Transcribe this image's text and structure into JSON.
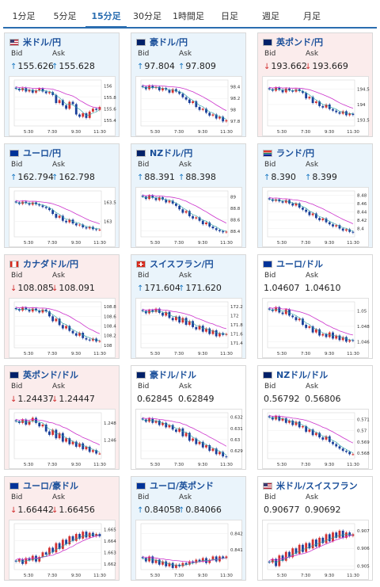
{
  "tabs": [
    {
      "label": "1分足",
      "active": false
    },
    {
      "label": "5分足",
      "active": false
    },
    {
      "label": "15分足",
      "active": true
    },
    {
      "label": "30分足",
      "active": false
    },
    {
      "label": "1時間足",
      "active": false
    },
    {
      "label": "日足",
      "active": false
    },
    {
      "label": "週足",
      "active": false
    },
    {
      "label": "月足",
      "active": false
    }
  ],
  "colors": {
    "up_arrow": "#1a78c2",
    "down_arrow": "#d23030",
    "tab_active": "#2a6db0",
    "card_up_bg": "#eaf4fb",
    "card_down_bg": "#fbecec",
    "ma_line": "#cc33cc",
    "ma_short": "#2aa3a3",
    "candle_up": "#d23030",
    "candle_down": "#1a3f9a"
  },
  "labels": {
    "bid": "Bid",
    "ask": "Ask"
  },
  "x_ticks": [
    "5:30",
    "7:30",
    "9:30",
    "11:30"
  ],
  "cards": [
    {
      "pair": "米ドル/円",
      "flag": "us-flag",
      "trend": "up",
      "bid": "155.626",
      "ask": "155.628",
      "bid_dir": "up",
      "ask_dir": "up",
      "y_ticks": [
        "156",
        "155.8",
        "155.6",
        "155.4"
      ],
      "ylim": [
        155.3,
        156.1
      ],
      "closes": [
        155.95,
        155.92,
        155.96,
        155.9,
        155.93,
        155.88,
        155.92,
        155.95,
        155.9,
        155.87,
        155.89,
        155.84,
        155.7,
        155.75,
        155.66,
        155.6,
        155.72,
        155.68,
        155.5,
        155.46,
        155.52,
        155.44,
        155.55,
        155.6,
        155.58,
        155.63
      ]
    },
    {
      "pair": "豪ドル/円",
      "flag": "au-flag",
      "trend": "up",
      "bid": "97.804",
      "ask": "97.809",
      "bid_dir": "up",
      "ask_dir": "up",
      "y_ticks": [
        "98.4",
        "98.2",
        "98",
        "97.8"
      ],
      "ylim": [
        97.72,
        98.52
      ],
      "closes": [
        98.4,
        98.36,
        98.42,
        98.38,
        98.4,
        98.34,
        98.38,
        98.35,
        98.3,
        98.36,
        98.32,
        98.28,
        98.22,
        98.18,
        98.12,
        98.15,
        98.05,
        98.0,
        98.02,
        97.95,
        97.9,
        97.92,
        97.85,
        97.88,
        97.8,
        97.82
      ]
    },
    {
      "pair": "英ポンド/円",
      "flag": "gb-flag",
      "trend": "down",
      "bid": "193.662",
      "ask": "193.669",
      "bid_dir": "down",
      "ask_dir": "down",
      "y_ticks": [
        "194.5",
        "194",
        "193.5"
      ],
      "ylim": [
        193.3,
        194.8
      ],
      "closes": [
        194.5,
        194.45,
        194.55,
        194.48,
        194.4,
        194.52,
        194.46,
        194.42,
        194.5,
        194.44,
        194.38,
        194.2,
        194.25,
        194.05,
        194.1,
        193.95,
        193.9,
        194.0,
        193.85,
        193.8,
        193.75,
        193.7,
        193.78,
        193.65,
        193.7,
        193.66
      ]
    },
    {
      "pair": "ユーロ/円",
      "flag": "eu-flag",
      "trend": "up",
      "bid": "162.794",
      "ask": "162.798",
      "bid_dir": "up",
      "ask_dir": "up",
      "y_ticks": [
        "163.5",
        "163"
      ],
      "ylim": [
        162.6,
        163.8
      ],
      "closes": [
        163.5,
        163.46,
        163.52,
        163.48,
        163.44,
        163.5,
        163.45,
        163.42,
        163.38,
        163.35,
        163.3,
        163.2,
        163.1,
        163.15,
        163.02,
        162.98,
        163.05,
        162.95,
        162.9,
        162.92,
        162.85,
        162.82,
        162.86,
        162.8,
        162.78,
        162.79
      ]
    },
    {
      "pair": "NZドル/円",
      "flag": "nz-flag",
      "trend": "up",
      "bid": "88.391",
      "ask": "88.398",
      "bid_dir": "up",
      "ask_dir": "up",
      "y_ticks": [
        "89",
        "88.8",
        "88.6",
        "88.4"
      ],
      "ylim": [
        88.3,
        89.1
      ],
      "closes": [
        89.0,
        88.96,
        89.02,
        88.98,
        88.94,
        88.99,
        88.95,
        88.9,
        88.93,
        88.88,
        88.84,
        88.78,
        88.72,
        88.75,
        88.66,
        88.62,
        88.64,
        88.58,
        88.52,
        88.55,
        88.48,
        88.45,
        88.42,
        88.4,
        88.38,
        88.39
      ]
    },
    {
      "pair": "ランド/円",
      "flag": "za-flag",
      "trend": "up",
      "bid": "8.390",
      "ask": "8.399",
      "bid_dir": "up",
      "ask_dir": "up",
      "y_ticks": [
        "8.48",
        "8.46",
        "8.44",
        "8.42",
        "8.4"
      ],
      "ylim": [
        8.38,
        8.49
      ],
      "closes": [
        8.47,
        8.466,
        8.47,
        8.465,
        8.462,
        8.468,
        8.46,
        8.455,
        8.46,
        8.45,
        8.445,
        8.44,
        8.432,
        8.436,
        8.425,
        8.42,
        8.424,
        8.415,
        8.41,
        8.405,
        8.408,
        8.4,
        8.395,
        8.398,
        8.392,
        8.39
      ]
    },
    {
      "pair": "カナダドル/円",
      "flag": "ca-flag",
      "trend": "down",
      "bid": "108.085",
      "ask": "108.091",
      "bid_dir": "down",
      "ask_dir": "down",
      "y_ticks": [
        "108.8",
        "108.6",
        "108.4",
        "108.2",
        "108"
      ],
      "ylim": [
        107.95,
        108.9
      ],
      "closes": [
        108.75,
        108.72,
        108.78,
        108.74,
        108.7,
        108.76,
        108.72,
        108.68,
        108.74,
        108.7,
        108.6,
        108.5,
        108.55,
        108.42,
        108.35,
        108.4,
        108.3,
        108.25,
        108.2,
        108.26,
        108.15,
        108.12,
        108.1,
        108.14,
        108.08,
        108.09
      ]
    },
    {
      "pair": "スイスフラン/円",
      "flag": "ch-flag",
      "trend": "up",
      "bid": "171.604",
      "ask": "171.620",
      "bid_dir": "up",
      "ask_dir": "up",
      "y_ticks": [
        "172.2",
        "172",
        "171.8",
        "171.6",
        "171.4"
      ],
      "ylim": [
        171.3,
        172.3
      ],
      "closes": [
        172.1,
        172.05,
        172.12,
        172.08,
        172.15,
        172.06,
        172.0,
        172.08,
        171.95,
        171.9,
        171.98,
        171.85,
        171.95,
        171.8,
        171.88,
        171.75,
        171.7,
        171.78,
        171.65,
        171.72,
        171.6,
        171.68,
        171.55,
        171.62,
        171.58,
        171.6
      ]
    },
    {
      "pair": "ユーロ/ドル",
      "flag": "eu-us-flag",
      "trend": "flat",
      "bid": "1.04607",
      "ask": "1.04610",
      "bid_dir": "none",
      "ask_dir": "none",
      "y_ticks": [
        "1.05",
        "1.048",
        "1.046"
      ],
      "ylim": [
        1.0452,
        1.0512
      ],
      "closes": [
        1.0502,
        1.05,
        1.0505,
        1.0498,
        1.0496,
        1.0502,
        1.0494,
        1.0492,
        1.0488,
        1.049,
        1.0482,
        1.0478,
        1.048,
        1.0472,
        1.0476,
        1.0468,
        1.047,
        1.0466,
        1.0472,
        1.0464,
        1.0468,
        1.0462,
        1.0466,
        1.046,
        1.0462,
        1.0461
      ]
    },
    {
      "pair": "英ポンド/ドル",
      "flag": "gb-us-flag",
      "trend": "down",
      "bid": "1.24437",
      "ask": "1.24447",
      "bid_dir": "down",
      "ask_dir": "down",
      "y_ticks": [
        "1.248",
        "1.246"
      ],
      "ylim": [
        1.2438,
        1.2492
      ],
      "closes": [
        1.2482,
        1.248,
        1.2484,
        1.2478,
        1.2482,
        1.2486,
        1.248,
        1.2476,
        1.2478,
        1.247,
        1.2466,
        1.2472,
        1.2462,
        1.2468,
        1.2458,
        1.2462,
        1.2455,
        1.2458,
        1.2452,
        1.2456,
        1.2449,
        1.2452,
        1.2446,
        1.2448,
        1.2444,
        1.2444
      ]
    },
    {
      "pair": "豪ドル/ドル",
      "flag": "au-us-flag",
      "trend": "flat",
      "bid": "0.62845",
      "ask": "0.62849",
      "bid_dir": "none",
      "ask_dir": "none",
      "y_ticks": [
        "0.632",
        "0.631",
        "0.63",
        "0.629"
      ],
      "ylim": [
        0.6283,
        0.6324
      ],
      "closes": [
        0.6318,
        0.6316,
        0.6319,
        0.6315,
        0.6317,
        0.6313,
        0.6315,
        0.6311,
        0.6313,
        0.6309,
        0.6307,
        0.631,
        0.6303,
        0.6306,
        0.6299,
        0.6301,
        0.6296,
        0.6298,
        0.6293,
        0.6295,
        0.629,
        0.6292,
        0.6287,
        0.6289,
        0.6285,
        0.62845
      ]
    },
    {
      "pair": "NZドル/ドル",
      "flag": "nz-us-flag",
      "trend": "flat",
      "bid": "0.56792",
      "ask": "0.56806",
      "bid_dir": "none",
      "ask_dir": "none",
      "y_ticks": [
        "0.571",
        "0.57",
        "0.569",
        "0.568"
      ],
      "ylim": [
        0.5675,
        0.5716
      ],
      "closes": [
        0.5712,
        0.571,
        0.5713,
        0.5709,
        0.5711,
        0.5707,
        0.5709,
        0.5705,
        0.5708,
        0.5703,
        0.5704,
        0.5699,
        0.5701,
        0.5696,
        0.5698,
        0.5694,
        0.5692,
        0.5695,
        0.569,
        0.5688,
        0.5686,
        0.5684,
        0.5682,
        0.5681,
        0.5679,
        0.5679
      ]
    },
    {
      "pair": "ユーロ/豪ドル",
      "flag": "eu-au-flag",
      "trend": "down",
      "bid": "1.66442",
      "ask": "1.66456",
      "bid_dir": "down",
      "ask_dir": "down",
      "y_ticks": [
        "1.665",
        "1.664",
        "1.663",
        "1.662"
      ],
      "ylim": [
        1.6615,
        1.6655
      ],
      "closes": [
        1.6622,
        1.6624,
        1.662,
        1.6625,
        1.6623,
        1.6627,
        1.6622,
        1.6626,
        1.663,
        1.6628,
        1.6634,
        1.663,
        1.6638,
        1.6633,
        1.6641,
        1.6637,
        1.6644,
        1.664,
        1.6646,
        1.6642,
        1.6648,
        1.6643,
        1.6647,
        1.6644,
        1.6646,
        1.6644
      ]
    },
    {
      "pair": "ユーロ/英ポンド",
      "flag": "eu-gb-flag",
      "trend": "up",
      "bid": "0.84058",
      "ask": "0.84066",
      "bid_dir": "up",
      "ask_dir": "up",
      "y_ticks": [
        "0.842",
        "0.841"
      ],
      "ylim": [
        0.8398,
        0.8426
      ],
      "closes": [
        0.8405,
        0.8403,
        0.8406,
        0.8402,
        0.8404,
        0.8401,
        0.8403,
        0.84,
        0.8402,
        0.8399,
        0.8401,
        0.84,
        0.8402,
        0.8401,
        0.8403,
        0.8402,
        0.8404,
        0.8403,
        0.8405,
        0.8402,
        0.8404,
        0.8406,
        0.8403,
        0.8406,
        0.8405,
        0.8406
      ]
    },
    {
      "pair": "米ドル/スイスフラン",
      "flag": "us-ch-flag",
      "trend": "flat",
      "bid": "0.90677",
      "ask": "0.90692",
      "bid_dir": "none",
      "ask_dir": "none",
      "y_ticks": [
        "0.907",
        "0.906",
        "0.905"
      ],
      "ylim": [
        0.9048,
        0.9074
      ],
      "closes": [
        0.9052,
        0.9054,
        0.905,
        0.9056,
        0.9053,
        0.9058,
        0.9055,
        0.906,
        0.9057,
        0.9062,
        0.9058,
        0.9063,
        0.906,
        0.9065,
        0.9061,
        0.9066,
        0.9063,
        0.9068,
        0.9064,
        0.9069,
        0.9066,
        0.907,
        0.9066,
        0.9069,
        0.9067,
        0.9068
      ]
    }
  ]
}
